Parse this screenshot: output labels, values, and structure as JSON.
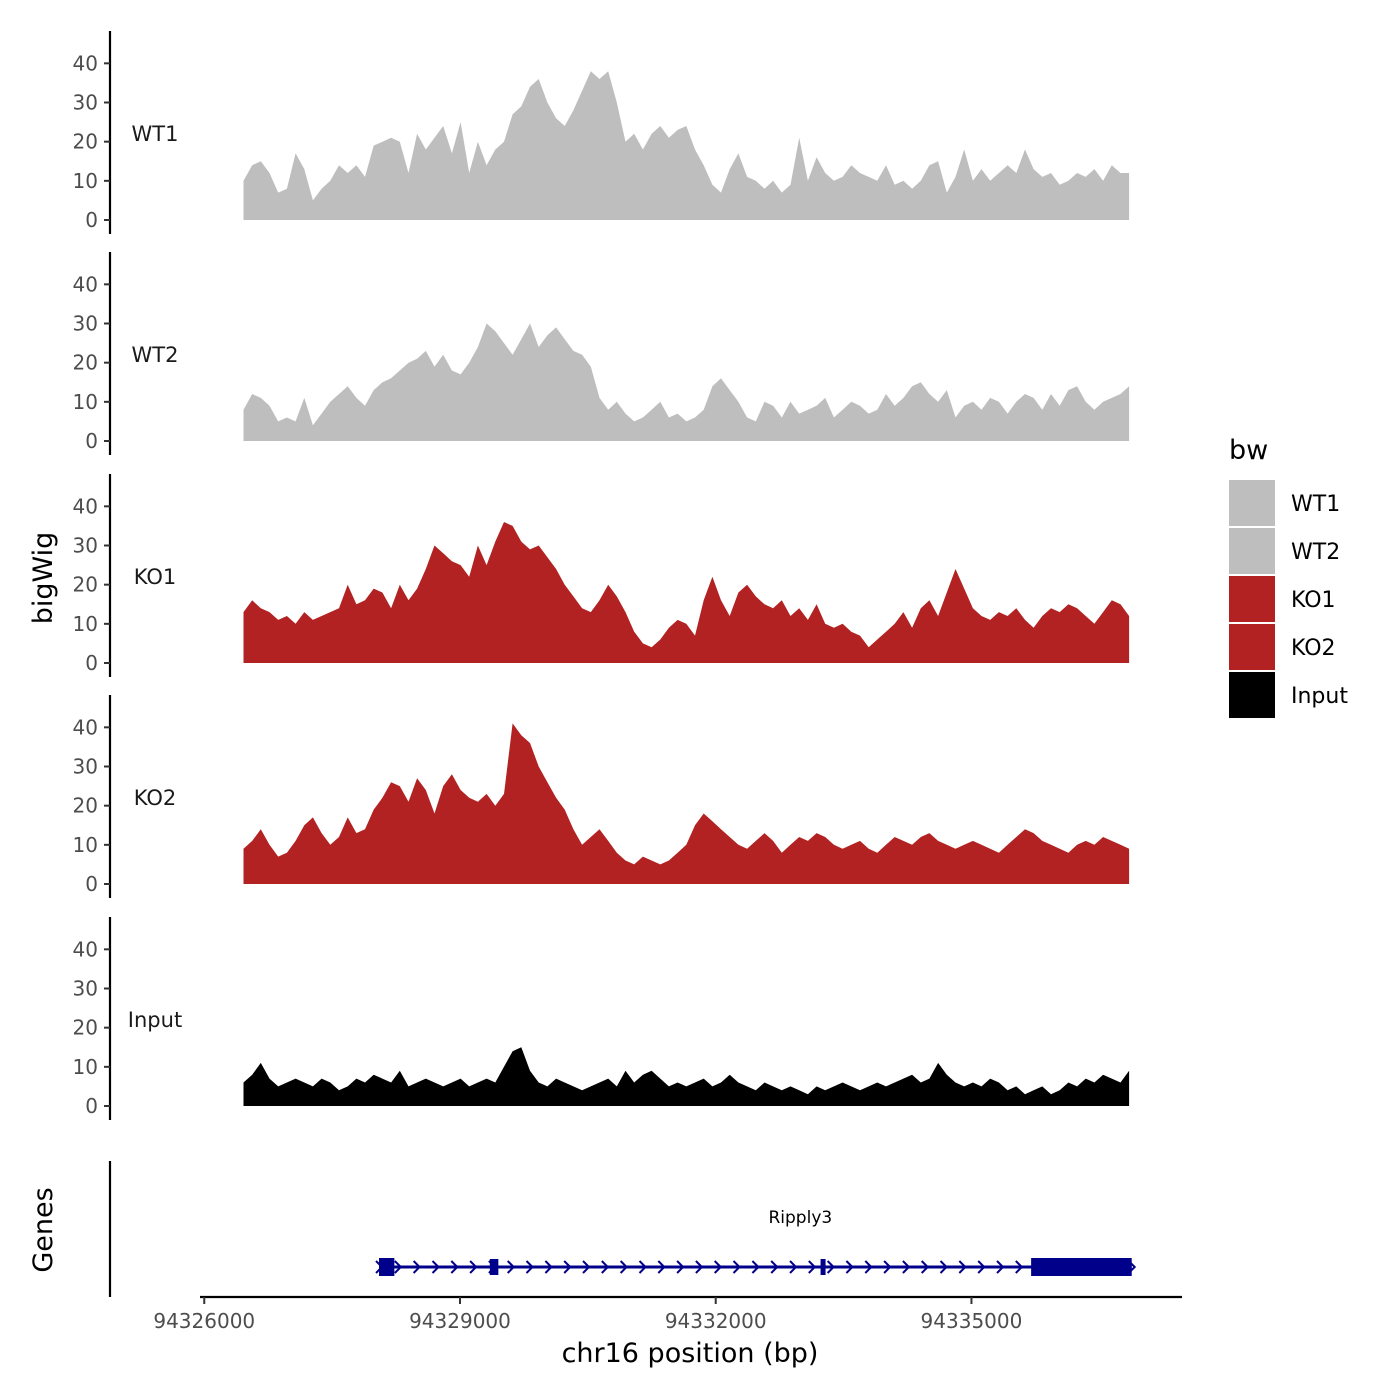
{
  "chart_data": {
    "type": "area",
    "chromosome": "chr16",
    "xlabel": "chr16 position (bp)",
    "ylabel": "bigWig",
    "genes_label": "Genes",
    "xlim": [
      94325950,
      94337470
    ],
    "x_ticks": [
      94326000,
      94329000,
      94332000,
      94335000
    ],
    "x_tick_labels": [
      "94326000",
      "94329000",
      "94332000",
      "94335000"
    ],
    "ylim": [
      0,
      48
    ],
    "y_ticks": [
      0,
      10,
      20,
      30,
      40
    ],
    "y_tick_labels": [
      "0",
      "10",
      "20",
      "30",
      "40"
    ],
    "x_start": 94326460,
    "x_end": 94336850,
    "series": [
      {
        "name": "WT1",
        "color": "#bebebe",
        "values": [
          10,
          14,
          15,
          12,
          7,
          8,
          17,
          13,
          5,
          8,
          10,
          14,
          12,
          14,
          11,
          19,
          20,
          21,
          20,
          12,
          22,
          18,
          21,
          24,
          17,
          25,
          12,
          20,
          14,
          18,
          20,
          27,
          29,
          34,
          36,
          30,
          26,
          24,
          28,
          33,
          38,
          36,
          38,
          30,
          20,
          22,
          18,
          22,
          24,
          21,
          23,
          24,
          18,
          14,
          9,
          7,
          13,
          17,
          11,
          10,
          8,
          10,
          7,
          9,
          21,
          10,
          16,
          12,
          10,
          11,
          14,
          12,
          11,
          10,
          14,
          9,
          10,
          8,
          10,
          14,
          15,
          7,
          11,
          18,
          10,
          13,
          10,
          12,
          14,
          12,
          18,
          13,
          11,
          12,
          9,
          10,
          12,
          11,
          13,
          10,
          14,
          12,
          12
        ]
      },
      {
        "name": "WT2",
        "color": "#bebebe",
        "values": [
          8,
          12,
          11,
          9,
          5,
          6,
          5,
          11,
          4,
          7,
          10,
          12,
          14,
          11,
          9,
          13,
          15,
          16,
          18,
          20,
          21,
          23,
          19,
          22,
          18,
          17,
          20,
          24,
          30,
          28,
          25,
          22,
          26,
          30,
          24,
          27,
          29,
          26,
          23,
          22,
          19,
          11,
          8,
          10,
          7,
          5,
          6,
          8,
          10,
          6,
          7,
          5,
          6,
          8,
          14,
          16,
          13,
          10,
          6,
          5,
          10,
          9,
          6,
          10,
          7,
          8,
          9,
          11,
          6,
          8,
          10,
          9,
          7,
          8,
          12,
          9,
          11,
          14,
          15,
          12,
          10,
          13,
          6,
          9,
          10,
          8,
          11,
          10,
          7,
          10,
          12,
          11,
          8,
          12,
          9,
          13,
          14,
          10,
          8,
          10,
          11,
          12,
          14
        ]
      },
      {
        "name": "KO1",
        "color": "#b22222",
        "values": [
          13,
          16,
          14,
          13,
          11,
          12,
          10,
          13,
          11,
          12,
          13,
          14,
          20,
          15,
          16,
          19,
          18,
          14,
          20,
          16,
          19,
          24,
          30,
          28,
          26,
          25,
          22,
          30,
          25,
          31,
          36,
          35,
          31,
          29,
          30,
          27,
          24,
          20,
          17,
          14,
          13,
          16,
          20,
          17,
          13,
          8,
          5,
          4,
          6,
          9,
          11,
          10,
          7,
          16,
          22,
          16,
          12,
          18,
          20,
          17,
          15,
          14,
          16,
          12,
          14,
          11,
          15,
          10,
          9,
          10,
          8,
          7,
          4,
          6,
          8,
          10,
          13,
          9,
          14,
          16,
          12,
          18,
          24,
          19,
          14,
          12,
          11,
          13,
          12,
          14,
          11,
          9,
          12,
          14,
          13,
          15,
          14,
          12,
          10,
          13,
          16,
          15,
          12
        ]
      },
      {
        "name": "KO2",
        "color": "#b22222",
        "values": [
          9,
          11,
          14,
          10,
          7,
          8,
          11,
          15,
          17,
          13,
          10,
          12,
          17,
          13,
          14,
          19,
          22,
          26,
          25,
          21,
          27,
          24,
          18,
          25,
          28,
          24,
          22,
          21,
          23,
          20,
          23,
          41,
          38,
          36,
          30,
          26,
          22,
          19,
          14,
          10,
          12,
          14,
          11,
          8,
          6,
          5,
          7,
          6,
          5,
          6,
          8,
          10,
          15,
          18,
          16,
          14,
          12,
          10,
          9,
          11,
          13,
          11,
          8,
          10,
          12,
          11,
          13,
          12,
          10,
          9,
          10,
          11,
          9,
          8,
          10,
          12,
          11,
          10,
          12,
          13,
          11,
          10,
          9,
          10,
          11,
          10,
          9,
          8,
          10,
          12,
          14,
          13,
          11,
          10,
          9,
          8,
          10,
          11,
          10,
          12,
          11,
          10,
          9
        ]
      },
      {
        "name": "Input",
        "color": "#000000",
        "values": [
          6,
          8,
          11,
          7,
          5,
          6,
          7,
          6,
          5,
          7,
          6,
          4,
          5,
          7,
          6,
          8,
          7,
          6,
          9,
          5,
          6,
          7,
          6,
          5,
          6,
          7,
          5,
          6,
          7,
          6,
          10,
          14,
          15,
          9,
          6,
          5,
          7,
          6,
          5,
          4,
          5,
          6,
          7,
          5,
          9,
          6,
          8,
          9,
          7,
          5,
          6,
          5,
          6,
          7,
          5,
          6,
          8,
          6,
          5,
          4,
          6,
          5,
          4,
          5,
          4,
          3,
          5,
          4,
          5,
          6,
          5,
          4,
          5,
          6,
          5,
          6,
          7,
          8,
          6,
          7,
          11,
          8,
          6,
          5,
          6,
          5,
          7,
          6,
          4,
          5,
          3,
          4,
          5,
          3,
          4,
          6,
          5,
          7,
          6,
          8,
          7,
          6,
          9
        ]
      }
    ],
    "legend": {
      "title": "bw",
      "position": "right",
      "entries": [
        {
          "label": "WT1",
          "color": "#bebebe"
        },
        {
          "label": "WT2",
          "color": "#bebebe"
        },
        {
          "label": "KO1",
          "color": "#b22222"
        },
        {
          "label": "KO2",
          "color": "#b22222"
        },
        {
          "label": "Input",
          "color": "#000000"
        }
      ]
    },
    "gene": {
      "name": "Ripply3",
      "strand": "+",
      "color": "#00008b",
      "start": 94328050,
      "end": 94336880,
      "exons": [
        [
          94328050,
          94328230
        ],
        [
          94329350,
          94329450
        ],
        [
          94333230,
          94333280
        ],
        [
          94335700,
          94336880
        ]
      ]
    }
  }
}
